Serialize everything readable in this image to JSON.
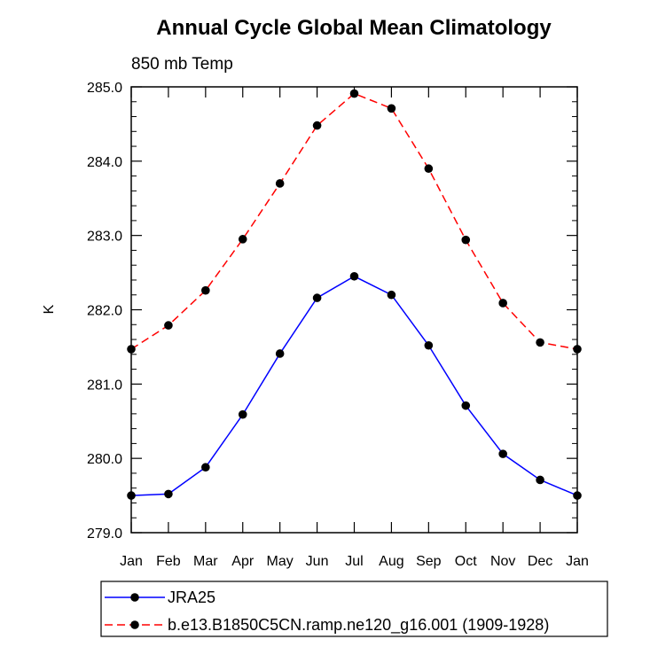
{
  "chart_data": {
    "type": "line",
    "title": "Annual Cycle Global Mean Climatology",
    "subtitle": "850 mb Temp",
    "xlabel": "",
    "ylabel": "K",
    "categories": [
      "Jan",
      "Feb",
      "Mar",
      "Apr",
      "May",
      "Jun",
      "Jul",
      "Aug",
      "Sep",
      "Oct",
      "Nov",
      "Dec",
      "Jan"
    ],
    "ylim": [
      279.0,
      285.0
    ],
    "yticks": [
      "279.0",
      "280.0",
      "281.0",
      "282.0",
      "283.0",
      "284.0",
      "285.0"
    ],
    "grid": false,
    "legend_position": "bottom",
    "series": [
      {
        "name": "JRA25",
        "color": "#0000ff",
        "dash": "solid",
        "marker": "circle",
        "values": [
          279.5,
          279.52,
          279.88,
          280.59,
          281.41,
          282.16,
          282.45,
          282.2,
          281.52,
          280.71,
          280.06,
          279.71,
          279.5
        ]
      },
      {
        "name": "b.e13.B1850C5CN.ramp.ne120_g16.001 (1909-1928)",
        "color": "#ff0000",
        "dash": "dashed",
        "marker": "circle",
        "values": [
          281.47,
          281.79,
          282.26,
          282.95,
          283.7,
          284.48,
          284.91,
          284.71,
          283.9,
          282.94,
          282.09,
          281.56,
          281.47
        ]
      }
    ]
  }
}
